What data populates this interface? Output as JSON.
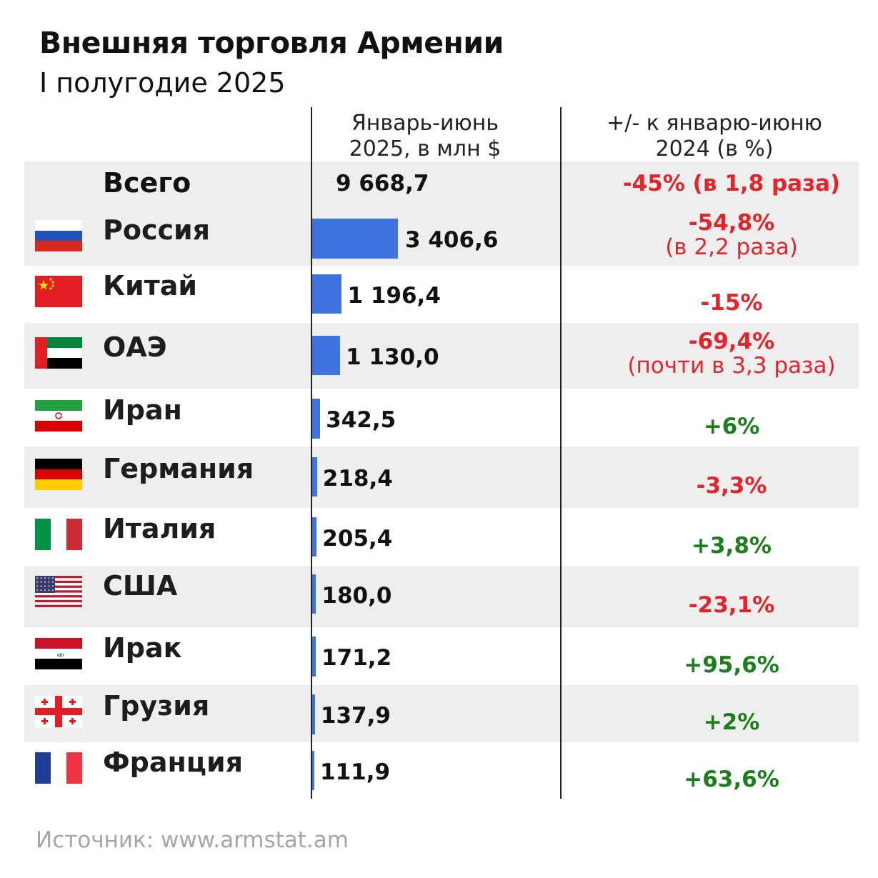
{
  "title": "Внешняя торговля Армении",
  "subtitle": "I полугодие 2025",
  "columns": {
    "value_line1": "Январь-июнь",
    "value_line2": "2025, в млн $",
    "change_line1": "+/- к январю-июню",
    "change_line2": "2024 (в %)"
  },
  "total": {
    "label": "Всего",
    "value": "9 668,7",
    "change": "-45% (в 1,8 раза)"
  },
  "source": "Источник: www.armstat.am",
  "colors": {
    "bar": "#3f74e0",
    "negative": "#e3242b",
    "positive": "#1a7f1a"
  },
  "chart_data": {
    "type": "bar",
    "title": "Внешняя торговля Армении",
    "subtitle": "I полугодие 2025",
    "categories": [
      "Россия",
      "Китай",
      "ОАЭ",
      "Иран",
      "Германия",
      "Италия",
      "США",
      "Ирак",
      "Грузия",
      "Франция"
    ],
    "values": [
      3406.6,
      1196.4,
      1130.0,
      342.5,
      218.4,
      205.4,
      180.0,
      171.2,
      137.9,
      111.9
    ],
    "value_labels": [
      "3 406,6",
      "1 196,4",
      "1 130,0",
      "342,5",
      "218,4",
      "205,4",
      "180,0",
      "171,2",
      "137,9",
      "111,9"
    ],
    "changes": [
      "-54,8%",
      "-15%",
      "-69,4%",
      "+6%",
      "-3,3%",
      "+3,8%",
      "-23,1%",
      "+95,6%",
      "+2%",
      "+63,6%"
    ],
    "change_notes": [
      "(в 2,2 раза)",
      "",
      "(почти в 3,3 раза)",
      "",
      "",
      "",
      "",
      "",
      "",
      ""
    ],
    "flags": [
      "russia-flag-icon",
      "china-flag-icon",
      "uae-flag-icon",
      "iran-flag-icon",
      "germany-flag-icon",
      "italy-flag-icon",
      "usa-flag-icon",
      "iraq-flag-icon",
      "georgia-flag-icon",
      "france-flag-icon"
    ],
    "ylabel": "Январь-июнь 2025, в млн $"
  }
}
